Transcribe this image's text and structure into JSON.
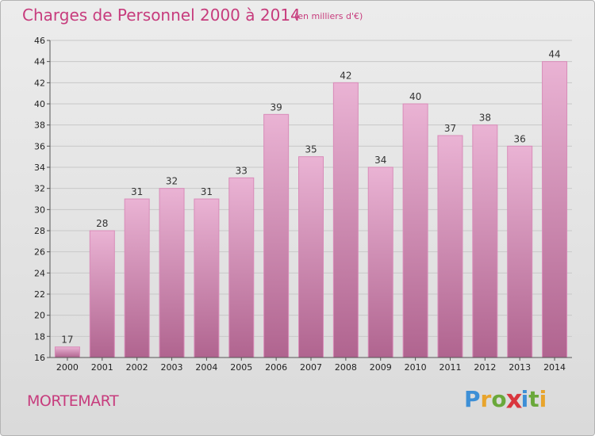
{
  "header": {
    "title": "Charges de Personnel 2000 à 2014",
    "unit": "(en milliers d'€)"
  },
  "footer": {
    "commune": "MORTEMART",
    "brand": "Proxiti",
    "brand_colors": [
      "#3d8fd6",
      "#e8a42c",
      "#6aa83a",
      "#d9363e",
      "#3d8fd6",
      "#6aa83a",
      "#e8a42c"
    ]
  },
  "colors": {
    "accent": "#c73c7d",
    "bar_top": "#eab3d4",
    "bar_bottom": "#b0648f",
    "bar_edge": "#d98cb9",
    "grid": "#c8c8c8",
    "axis_text": "#222222"
  },
  "chart_data": {
    "type": "bar",
    "title": "Charges de Personnel 2000 à 2014",
    "subtitle": "(en milliers d'€)",
    "xlabel": "",
    "ylabel": "",
    "categories": [
      "2000",
      "2001",
      "2002",
      "2003",
      "2004",
      "2005",
      "2006",
      "2007",
      "2008",
      "2009",
      "2010",
      "2011",
      "2012",
      "2013",
      "2014"
    ],
    "values": [
      17,
      28,
      31,
      32,
      31,
      33,
      39,
      35,
      42,
      34,
      40,
      37,
      38,
      36,
      44
    ],
    "ylim": [
      16,
      46
    ],
    "yticks": [
      16,
      18,
      20,
      22,
      24,
      26,
      28,
      30,
      32,
      34,
      36,
      38,
      40,
      42,
      44,
      46
    ],
    "grid": true,
    "legend": "none"
  }
}
